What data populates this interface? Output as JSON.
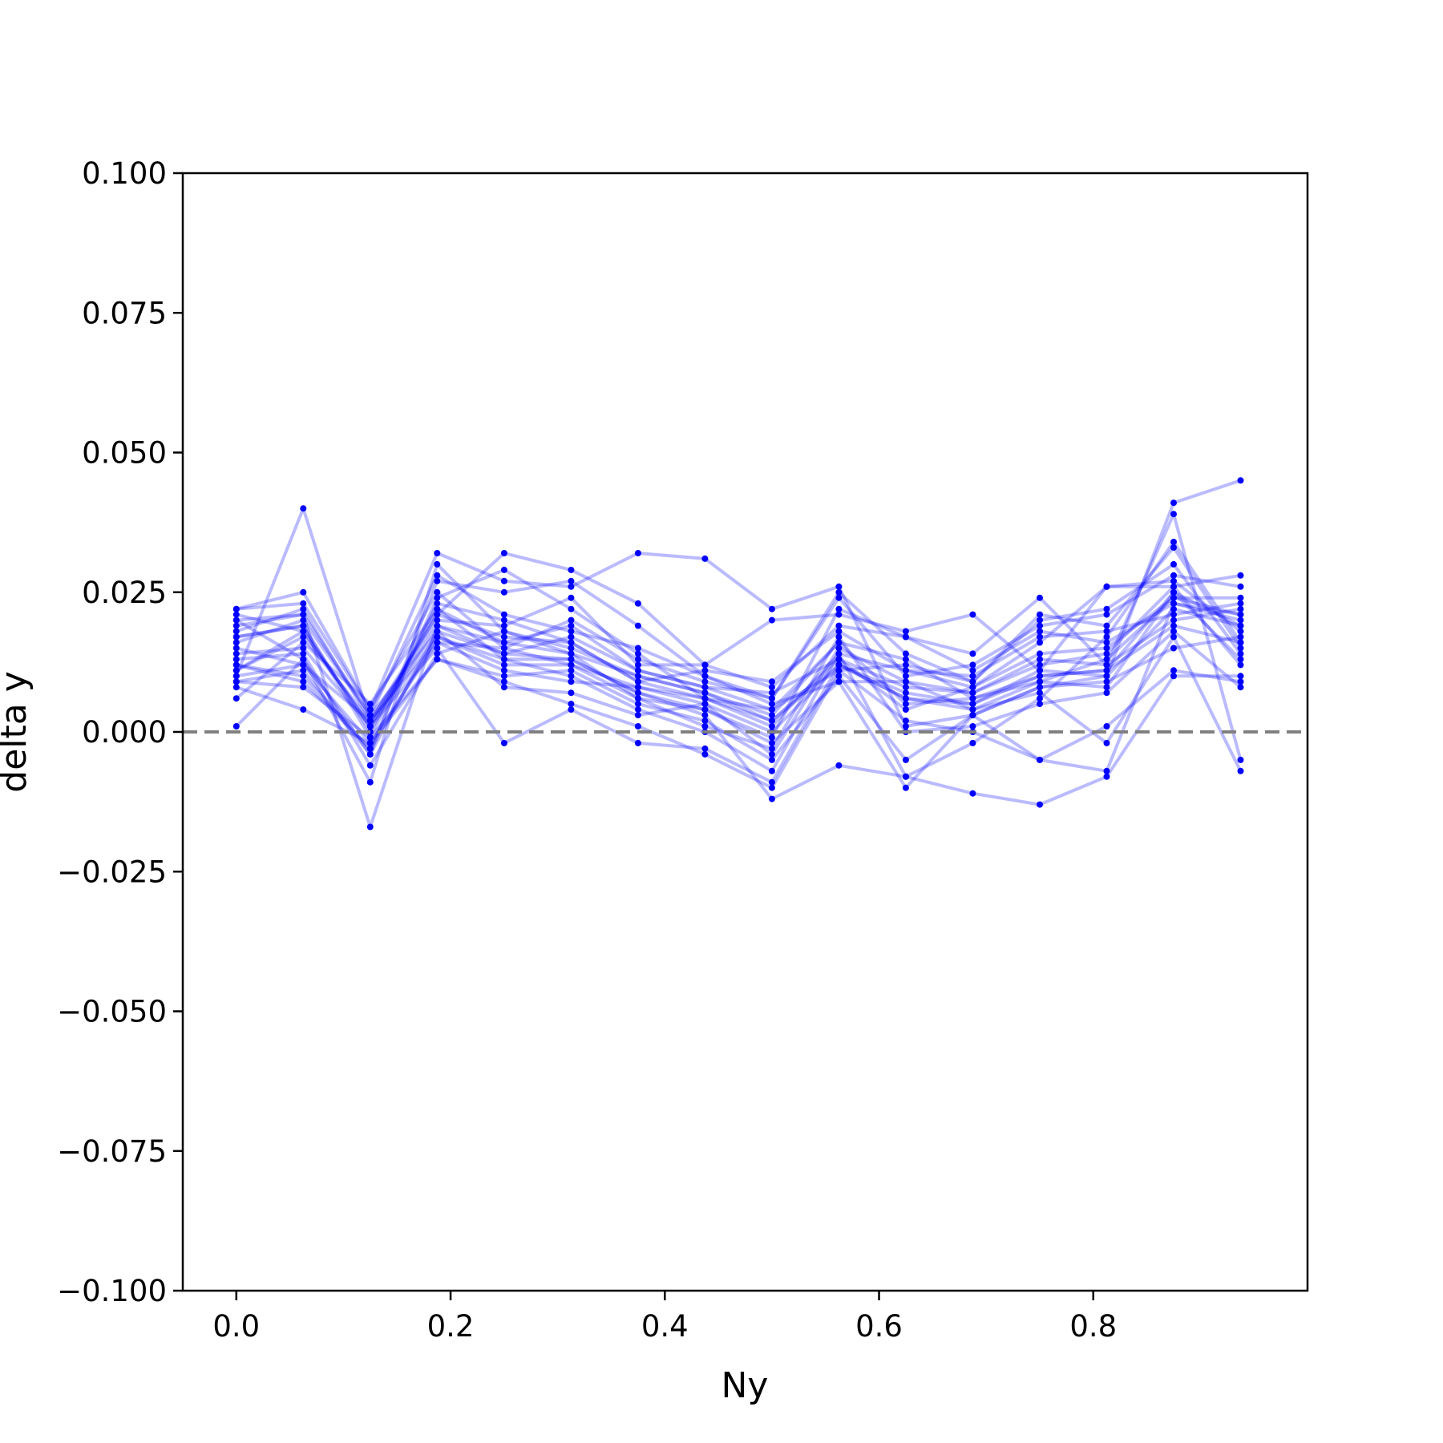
{
  "chart_data": {
    "type": "line",
    "title": "",
    "xlabel": "Ny",
    "ylabel": "delta y",
    "xlim": [
      -0.05,
      1.0
    ],
    "ylim": [
      -0.1,
      0.1
    ],
    "x_ticks": [
      0.0,
      0.2,
      0.4,
      0.6,
      0.8
    ],
    "x_tick_labels": [
      "0.0",
      "0.2",
      "0.4",
      "0.6",
      "0.8"
    ],
    "y_ticks": [
      0.1,
      0.075,
      0.05,
      0.025,
      0.0,
      -0.025,
      -0.05,
      -0.075,
      -0.1
    ],
    "y_tick_labels": [
      "0.100",
      "0.075",
      "0.050",
      "0.025",
      "0.000",
      "−0.025",
      "−0.050",
      "−0.075",
      "−0.100"
    ],
    "reference_line": {
      "y": 0.0,
      "style": "dashed",
      "color": "#808080"
    },
    "grid": false,
    "legend": "none",
    "series_color": "#0000ff",
    "line_alpha": 0.27,
    "x": [
      0.0,
      0.0625,
      0.125,
      0.1875,
      0.25,
      0.3125,
      0.375,
      0.4375,
      0.5,
      0.5625,
      0.625,
      0.6875,
      0.75,
      0.8125,
      0.875,
      0.9375
    ],
    "series": [
      {
        "values": [
          0.01,
          0.04,
          0.002,
          0.016,
          0.015,
          0.012,
          0.008,
          0.006,
          0.002,
          0.012,
          0.006,
          0.005,
          0.01,
          0.011,
          0.025,
          0.019
        ]
      },
      {
        "values": [
          0.022,
          0.025,
          0.004,
          0.032,
          0.027,
          0.026,
          0.032,
          0.031,
          0.022,
          0.026,
          0.001,
          0.003,
          0.008,
          0.01,
          0.041,
          0.045
        ]
      },
      {
        "values": [
          0.02,
          0.021,
          -0.017,
          0.019,
          0.014,
          0.013,
          0.007,
          0.003,
          -0.012,
          -0.006,
          -0.008,
          -0.011,
          -0.013,
          -0.008,
          0.01,
          0.01
        ]
      },
      {
        "values": [
          0.011,
          0.018,
          0.001,
          0.021,
          0.032,
          0.029,
          0.023,
          0.012,
          0.02,
          0.021,
          0.018,
          0.021,
          0.011,
          0.026,
          0.026,
          0.028
        ]
      },
      {
        "values": [
          0.001,
          0.013,
          -0.009,
          0.03,
          0.018,
          0.014,
          0.006,
          0.004,
          -0.001,
          0.022,
          0.017,
          0.014,
          0.024,
          0.012,
          0.039,
          -0.005
        ]
      },
      {
        "values": [
          0.009,
          0.011,
          -0.004,
          0.027,
          0.025,
          0.027,
          0.019,
          0.01,
          0.005,
          0.009,
          -0.01,
          0.003,
          -0.005,
          -0.007,
          0.023,
          0.021
        ]
      },
      {
        "values": [
          0.006,
          0.016,
          0.005,
          0.022,
          0.016,
          0.019,
          0.011,
          0.008,
          0.007,
          0.013,
          0.004,
          0.008,
          0.016,
          0.026,
          0.027,
          0.018
        ]
      },
      {
        "values": [
          0.015,
          0.012,
          0.002,
          0.017,
          0.013,
          0.01,
          0.004,
          0.0,
          -0.007,
          0.014,
          -0.008,
          -0.002,
          0.006,
          0.017,
          0.034,
          0.016
        ]
      },
      {
        "values": [
          0.017,
          0.019,
          -0.001,
          0.023,
          0.02,
          0.016,
          0.009,
          0.011,
          0.009,
          0.018,
          0.011,
          0.01,
          0.017,
          0.018,
          0.021,
          0.023
        ]
      },
      {
        "values": [
          0.012,
          0.009,
          -0.003,
          0.024,
          0.029,
          0.022,
          0.014,
          0.006,
          0.004,
          0.011,
          0.012,
          0.009,
          0.02,
          0.022,
          0.03,
          0.014
        ]
      },
      {
        "values": [
          0.019,
          0.021,
          0.003,
          0.018,
          0.008,
          0.007,
          0.003,
          0.005,
          -0.004,
          0.015,
          0.009,
          0.007,
          0.012,
          0.014,
          0.026,
          0.012
        ]
      },
      {
        "values": [
          0.021,
          0.018,
          0.001,
          0.015,
          -0.002,
          0.004,
          -0.002,
          -0.003,
          -0.009,
          0.012,
          0.006,
          0.004,
          0.007,
          -0.002,
          0.017,
          -0.007
        ]
      },
      {
        "values": [
          0.013,
          0.014,
          -0.006,
          0.014,
          0.018,
          0.015,
          0.01,
          0.007,
          0.003,
          0.016,
          0.013,
          0.006,
          0.009,
          0.013,
          0.024,
          0.024
        ]
      },
      {
        "values": [
          0.018,
          0.022,
          0.002,
          0.02,
          0.019,
          0.024,
          0.012,
          0.012,
          0.008,
          0.019,
          0.017,
          0.011,
          0.018,
          0.016,
          0.023,
          0.02
        ]
      },
      {
        "values": [
          0.008,
          0.004,
          -0.002,
          0.013,
          0.01,
          0.011,
          0.005,
          0.002,
          -0.005,
          0.01,
          -0.005,
          0.003,
          0.008,
          0.009,
          0.015,
          0.017
        ]
      },
      {
        "values": [
          0.022,
          0.023,
          0.004,
          0.025,
          0.015,
          0.02,
          0.013,
          0.009,
          0.006,
          0.024,
          0.01,
          0.012,
          0.019,
          0.021,
          0.028,
          0.026
        ]
      },
      {
        "values": [
          0.01,
          0.012,
          -0.002,
          0.016,
          0.011,
          0.009,
          0.008,
          0.005,
          0.0,
          0.012,
          0.007,
          0.005,
          0.011,
          0.01,
          0.022,
          0.019
        ]
      },
      {
        "values": [
          0.014,
          0.015,
          0.001,
          0.019,
          0.016,
          0.014,
          0.01,
          0.007,
          0.002,
          0.013,
          0.008,
          0.007,
          0.013,
          0.012,
          0.02,
          0.022
        ]
      },
      {
        "values": [
          0.012,
          0.01,
          -0.003,
          0.017,
          0.012,
          0.012,
          0.006,
          0.001,
          -0.003,
          0.017,
          0.0,
          0.001,
          0.005,
          0.007,
          0.018,
          0.008
        ]
      },
      {
        "values": [
          0.016,
          0.02,
          0.003,
          0.028,
          0.021,
          0.018,
          0.015,
          0.01,
          0.006,
          0.025,
          0.014,
          0.009,
          0.021,
          0.019,
          0.033,
          0.015
        ]
      },
      {
        "values": [
          0.009,
          0.008,
          -0.001,
          0.013,
          0.009,
          0.005,
          0.001,
          -0.004,
          -0.01,
          0.011,
          0.002,
          0.0,
          -0.005,
          0.001,
          0.011,
          0.009
        ]
      },
      {
        "values": [
          0.011,
          0.017,
          0.002,
          0.021,
          0.017,
          0.016,
          0.009,
          0.006,
          0.001,
          0.014,
          0.011,
          0.008,
          0.014,
          0.015,
          0.024,
          0.021
        ]
      },
      {
        "values": [
          0.02,
          0.013,
          -0.004,
          0.018,
          0.014,
          0.017,
          0.011,
          0.008,
          0.004,
          0.016,
          0.005,
          0.006,
          0.01,
          0.011,
          0.019,
          0.016
        ]
      },
      {
        "values": [
          0.017,
          0.019,
          0.0,
          0.022,
          0.013,
          0.013,
          0.007,
          0.004,
          -0.002,
          0.009,
          0.009,
          0.004,
          0.009,
          0.008,
          0.025,
          0.013
        ]
      }
    ]
  }
}
